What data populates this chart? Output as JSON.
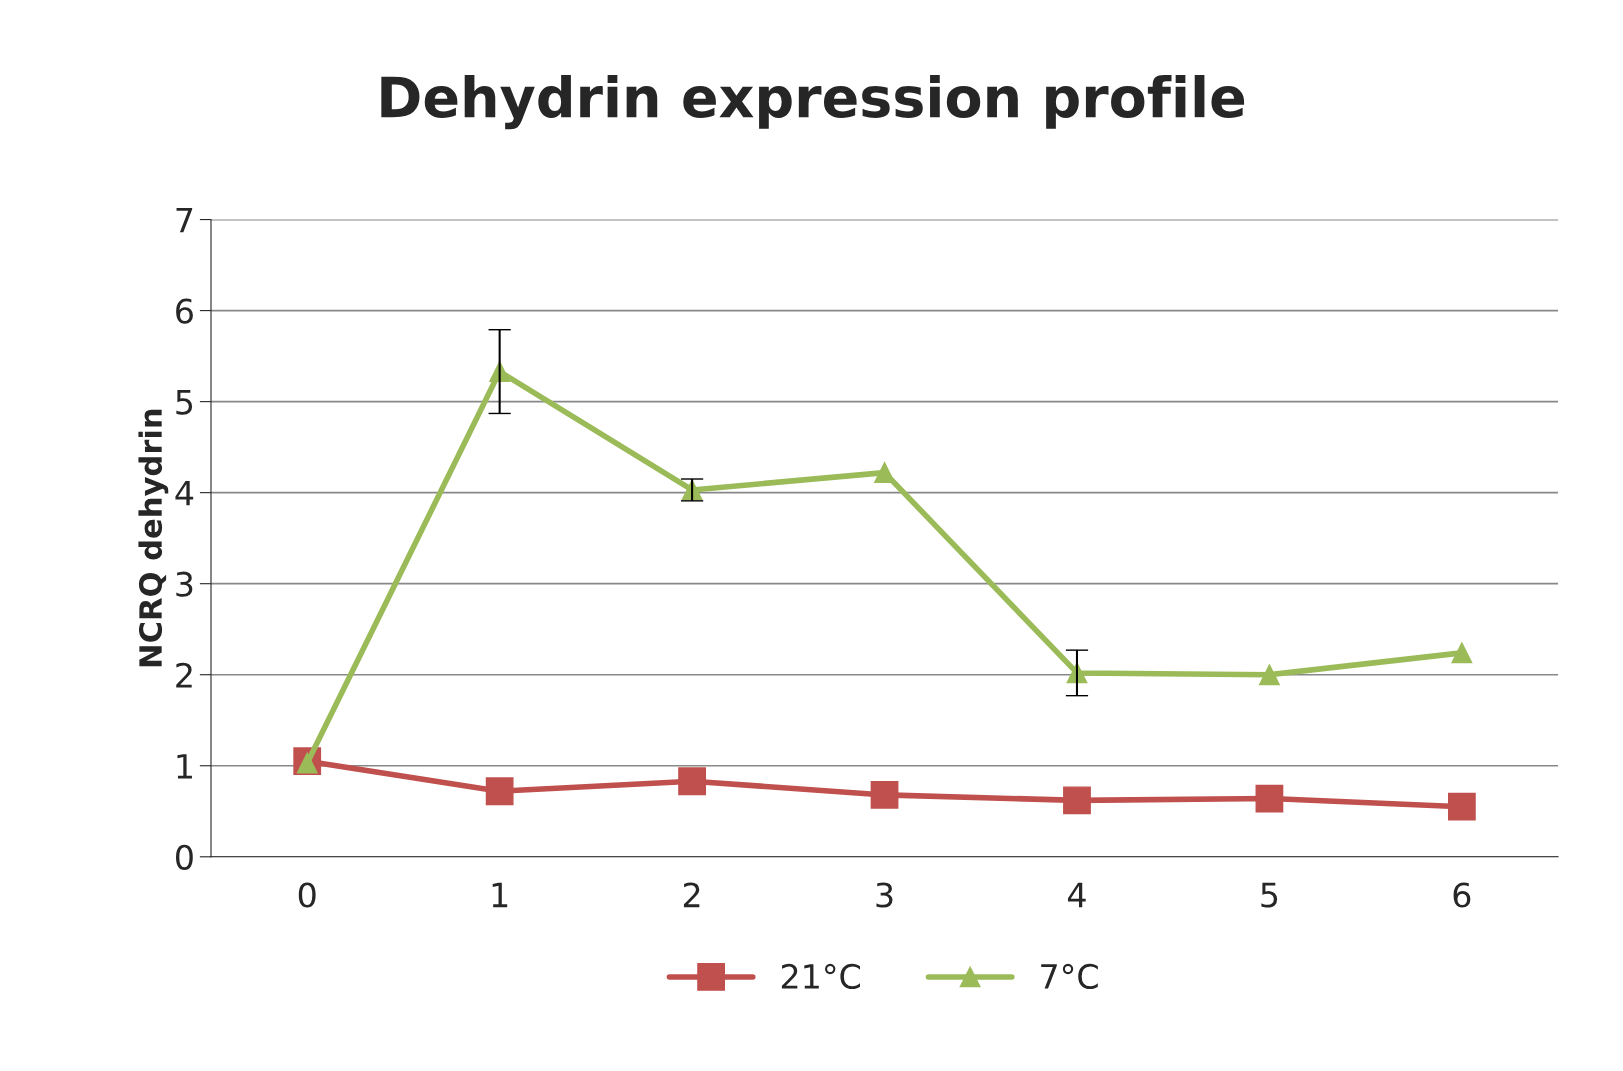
{
  "chart_data": {
    "type": "line",
    "title": "Dehydrin expression profile",
    "ylabel": "NCRQ dehydrin",
    "categories": [
      "0",
      "1",
      "2",
      "3",
      "4",
      "5",
      "6"
    ],
    "series": [
      {
        "name": "21°C",
        "color": "#c0504d",
        "marker": "square",
        "values": [
          1.05,
          0.72,
          0.83,
          0.68,
          0.62,
          0.64,
          0.55
        ]
      },
      {
        "name": "7°C",
        "color": "#9bbb59",
        "marker": "triangle",
        "values": [
          1.03,
          5.33,
          4.03,
          4.22,
          2.02,
          2.0,
          2.24
        ],
        "errors": [
          null,
          0.46,
          0.12,
          null,
          0.25,
          null,
          null
        ]
      }
    ],
    "ylim": [
      0,
      7
    ],
    "yticks": [
      0,
      1,
      2,
      3,
      4,
      5,
      6,
      7
    ],
    "grid": "y",
    "legend": "bottom",
    "line_style": "solid"
  }
}
